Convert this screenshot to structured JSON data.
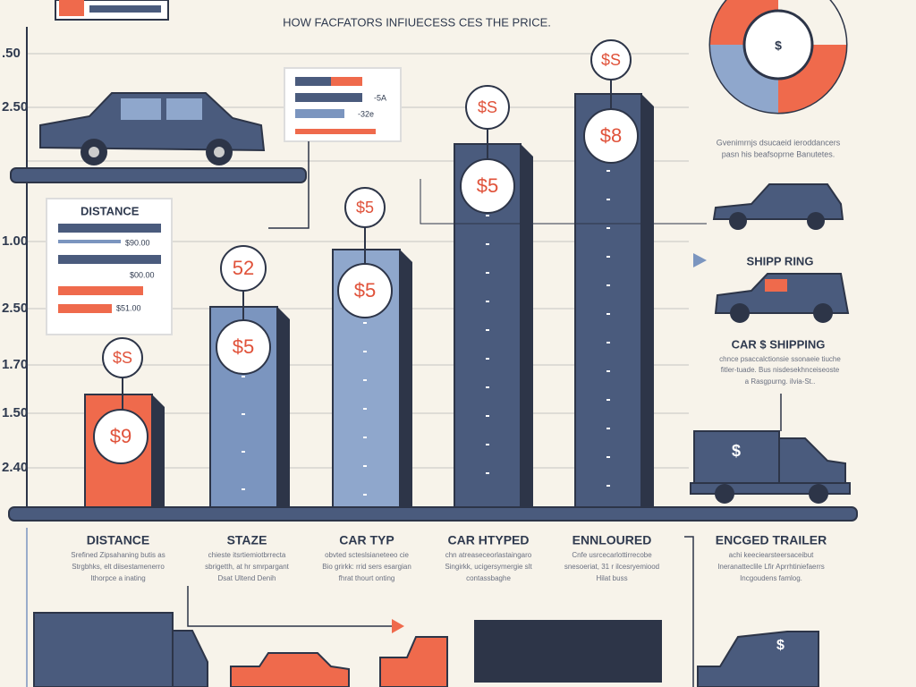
{
  "title": "HOW FACFATORS INFIUECESS CES THE PRICE.",
  "axis_labels": [
    ".50",
    "2.50",
    "1.00",
    "2.50",
    "1.70",
    "1.50",
    "2.40"
  ],
  "legend_box": {
    "labels": [
      "-5A",
      "-32e"
    ]
  },
  "distance_box": {
    "title": "DISTANCE",
    "values": [
      "$90.00",
      "$00.00",
      "$51.00"
    ]
  },
  "bars": [
    {
      "top_label": "$S",
      "label": "$9"
    },
    {
      "top_label": "52",
      "label": "$5"
    },
    {
      "top_label": "$5",
      "label": "$5"
    },
    {
      "top_label": "$S",
      "label": "$5"
    },
    {
      "top_label": "$S",
      "label": "$8"
    }
  ],
  "categories": [
    {
      "name": "DISTANCE",
      "text": [
        "Srefined Zipsahaning butis as",
        "Strgbhks, elt diisestamenerro",
        "Ithorpce a inating"
      ]
    },
    {
      "name": "STAZE",
      "text": [
        "chieste itsrtiemiotbrrecta",
        "sbrigetth, at hr smrpargant",
        "Dsat Ultend Denih"
      ]
    },
    {
      "name": "CAR TYP",
      "text": [
        "obvted scteslsianeteeo cie",
        "Bio grirkk: rrid sers esargian",
        "fhrat thourt onting"
      ]
    },
    {
      "name": "CAR HTYPED",
      "text": [
        "chn atreaseceorlastaingaro",
        "Singirkk, ucigersymergie slt",
        "contassbaghe"
      ]
    },
    {
      "name": "ENNLOURED",
      "text": [
        "Cnfe usrcecarlottirrecobe",
        "snesoeriat, 31 r ilcesryemiood",
        "Hilat buss"
      ]
    },
    {
      "name": "ENCGED TRAILER",
      "text": [
        "achi keeciearsteersaceibut",
        "Ineranatteclile Lfir Aprrhtiniefaerrs",
        "Incgoudens famlog."
      ]
    }
  ],
  "side": {
    "note": [
      "Gvenimrnjs dsucaeid ieroddancers",
      "pasn his beafsoprne Banutetes."
    ],
    "shipping": "SHIPP RING",
    "car_shipping": "CAR $ SHIPPING",
    "car_text": [
      "chnce psaccalctionsie ssonaeie tiuche",
      "fitler-tuade. Bus nisdesekhnceiseoste",
      "a Rasgpurng. ilvia-St.."
    ]
  },
  "icons": {
    "pie": "$",
    "truck": "$",
    "van": "$"
  }
}
